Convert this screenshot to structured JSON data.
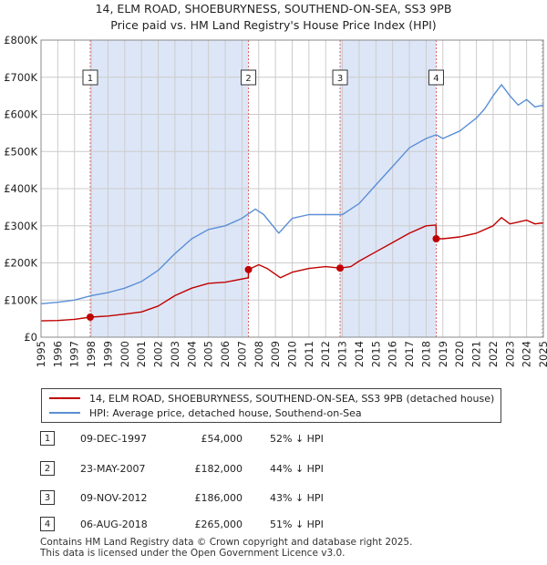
{
  "title_line1": "14, ELM ROAD, SHOEBURYNESS, SOUTHEND-ON-SEA, SS3 9PB",
  "title_line2": "Price paid vs. HM Land Registry's House Price Index (HPI)",
  "colors": {
    "property": "#c00000",
    "hpi": "#5b8fd6",
    "shade": "#dde6f7",
    "grid": "#cccccc",
    "marker_line": "#e06060"
  },
  "legend": {
    "property_label": "14, ELM ROAD, SHOEBURYNESS, SOUTHEND-ON-SEA, SS3 9PB (detached house)",
    "hpi_label": "HPI: Average price, detached house, Southend-on-Sea"
  },
  "sales": [
    {
      "num": "1",
      "date": "09-DEC-1997",
      "price": "£54,000",
      "hpi_diff": "52% ↓ HPI"
    },
    {
      "num": "2",
      "date": "23-MAY-2007",
      "price": "£182,000",
      "hpi_diff": "44% ↓ HPI"
    },
    {
      "num": "3",
      "date": "09-NOV-2012",
      "price": "£186,000",
      "hpi_diff": "43% ↓ HPI"
    },
    {
      "num": "4",
      "date": "06-AUG-2018",
      "price": "£265,000",
      "hpi_diff": "51% ↓ HPI"
    }
  ],
  "footer_line1": "Contains HM Land Registry data © Crown copyright and database right 2025.",
  "footer_line2": "This data is licensed under the Open Government Licence v3.0.",
  "chart_data": {
    "type": "line",
    "title": "Price paid vs. HM Land Registry's House Price Index (HPI)",
    "xlabel": "",
    "ylabel": "",
    "xlim": [
      1995,
      2025
    ],
    "ylim": [
      0,
      800000
    ],
    "y_ticks": [
      0,
      100000,
      200000,
      300000,
      400000,
      500000,
      600000,
      700000,
      800000
    ],
    "y_tick_labels": [
      "£0",
      "£100K",
      "£200K",
      "£300K",
      "£400K",
      "£500K",
      "£600K",
      "£700K",
      "£800K"
    ],
    "x_ticks": [
      1995,
      1996,
      1997,
      1998,
      1999,
      2000,
      2001,
      2002,
      2003,
      2004,
      2005,
      2006,
      2007,
      2008,
      2009,
      2010,
      2011,
      2012,
      2013,
      2014,
      2015,
      2016,
      2017,
      2018,
      2019,
      2020,
      2021,
      2022,
      2023,
      2024,
      2025
    ],
    "x_tick_labels": [
      "1995",
      "1996",
      "1997",
      "1998",
      "1999",
      "2000",
      "2001",
      "2002",
      "2003",
      "2004",
      "2005",
      "2006",
      "2007",
      "2008",
      "2009",
      "2010",
      "2011",
      "2012",
      "2013",
      "2014",
      "2015",
      "2016",
      "2017",
      "2018",
      "2019",
      "2020",
      "2021",
      "2022",
      "2023",
      "2024",
      "2025"
    ],
    "grid": true,
    "shaded_periods": [
      [
        1997.94,
        2007.39
      ],
      [
        2012.86,
        2018.6
      ]
    ],
    "hatched_period": [
      2024.9,
      2025.0
    ],
    "sale_markers": [
      {
        "label": "1",
        "x": 1997.94,
        "y": 54000
      },
      {
        "label": "2",
        "x": 2007.39,
        "y": 182000
      },
      {
        "label": "3",
        "x": 2012.86,
        "y": 186000
      },
      {
        "label": "4",
        "x": 2018.6,
        "y": 265000
      }
    ],
    "series": [
      {
        "name": "HPI: Average price, detached house, Southend-on-Sea",
        "x": [
          1995,
          1996,
          1997,
          1998,
          1999,
          2000,
          2001,
          2002,
          2003,
          2004,
          2005,
          2006,
          2007,
          2007.8,
          2008.3,
          2009.2,
          2010,
          2011,
          2012,
          2013,
          2014,
          2015,
          2016,
          2017,
          2018,
          2018.6,
          2019,
          2020,
          2021,
          2021.5,
          2022,
          2022.5,
          2023,
          2023.5,
          2024,
          2024.5,
          2025
        ],
        "values": [
          90000,
          94000,
          100000,
          112000,
          120000,
          132000,
          150000,
          180000,
          225000,
          265000,
          290000,
          300000,
          320000,
          345000,
          330000,
          280000,
          320000,
          330000,
          330000,
          330000,
          360000,
          410000,
          460000,
          510000,
          535000,
          545000,
          535000,
          555000,
          590000,
          615000,
          650000,
          680000,
          650000,
          625000,
          640000,
          620000,
          625000
        ]
      },
      {
        "name": "14, ELM ROAD, SHOEBURYNESS, SOUTHEND-ON-SEA, SS3 9PB (detached house)",
        "x": [
          1995,
          1996,
          1997,
          1997.94,
          1999,
          2000,
          2001,
          2002,
          2003,
          2004,
          2005,
          2006,
          2007.38,
          2007.39,
          2008,
          2008.5,
          2009.3,
          2010,
          2011,
          2012,
          2012.86,
          2013.5,
          2014,
          2015,
          2016,
          2017,
          2018,
          2018.59,
          2018.6,
          2019,
          2020,
          2021,
          2022,
          2022.5,
          2023,
          2023.5,
          2024,
          2024.5,
          2025
        ],
        "values": [
          44000,
          45000,
          48000,
          54000,
          57000,
          62000,
          68000,
          84000,
          112000,
          132000,
          145000,
          148000,
          160000,
          182000,
          195000,
          185000,
          160000,
          175000,
          185000,
          190000,
          186000,
          190000,
          205000,
          230000,
          255000,
          280000,
          300000,
          302000,
          265000,
          265000,
          270000,
          280000,
          300000,
          322000,
          305000,
          310000,
          315000,
          305000,
          308000
        ]
      }
    ]
  }
}
